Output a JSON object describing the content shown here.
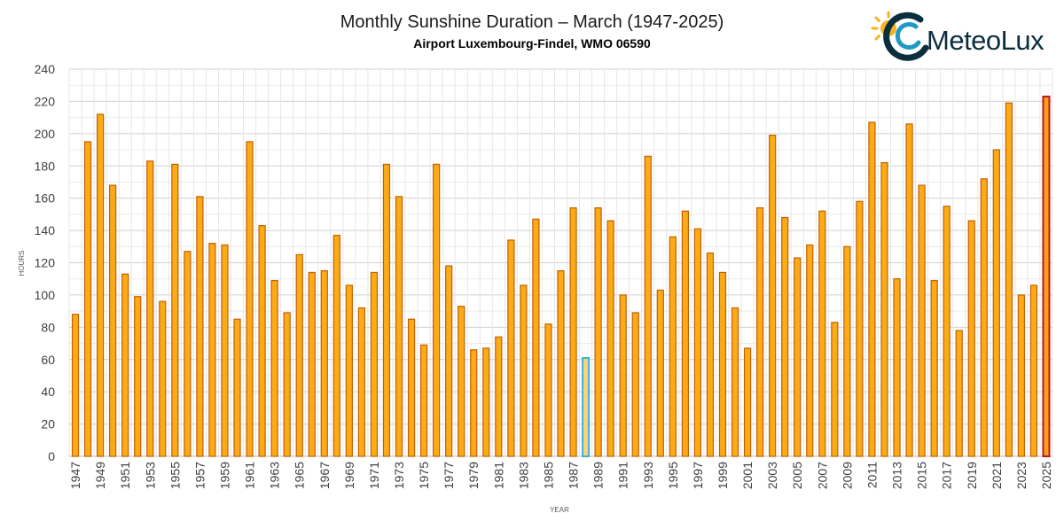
{
  "logo": {
    "text": "MeteoLux",
    "icon": "sun-swirl-logo-icon"
  },
  "chart_data": {
    "type": "bar",
    "title": "Monthly Sunshine Duration – March (1947-2025)",
    "subtitle": "Airport Luxembourg-Findel, WMO 06590",
    "xlabel": "YEAR",
    "ylabel": "HOURS",
    "ylim": [
      0,
      240
    ],
    "yticks": [
      0,
      20,
      40,
      60,
      80,
      100,
      120,
      140,
      160,
      180,
      200,
      220,
      240
    ],
    "grid": true,
    "categories": [
      1947,
      1948,
      1949,
      1950,
      1951,
      1952,
      1953,
      1954,
      1955,
      1956,
      1957,
      1958,
      1959,
      1960,
      1961,
      1962,
      1963,
      1964,
      1965,
      1966,
      1967,
      1968,
      1969,
      1970,
      1971,
      1972,
      1973,
      1974,
      1975,
      1976,
      1977,
      1978,
      1979,
      1980,
      1981,
      1982,
      1983,
      1984,
      1985,
      1986,
      1987,
      1988,
      1989,
      1990,
      1991,
      1992,
      1993,
      1994,
      1995,
      1996,
      1997,
      1998,
      1999,
      2000,
      2001,
      2002,
      2003,
      2004,
      2005,
      2006,
      2007,
      2008,
      2009,
      2010,
      2011,
      2012,
      2013,
      2014,
      2015,
      2016,
      2017,
      2018,
      2019,
      2020,
      2021,
      2022,
      2023,
      2024,
      2025
    ],
    "values": [
      88,
      195,
      212,
      168,
      113,
      99,
      183,
      96,
      181,
      127,
      161,
      132,
      131,
      85,
      195,
      143,
      109,
      89,
      125,
      114,
      115,
      137,
      106,
      92,
      114,
      181,
      161,
      85,
      69,
      181,
      118,
      93,
      66,
      67,
      74,
      134,
      106,
      147,
      82,
      115,
      154,
      61,
      154,
      146,
      100,
      89,
      186,
      103,
      136,
      152,
      141,
      126,
      114,
      92,
      67,
      154,
      199,
      148,
      123,
      131,
      152,
      83,
      130,
      158,
      207,
      182,
      110,
      206,
      168,
      109,
      155,
      78,
      146,
      172,
      190,
      219,
      100,
      106,
      223
    ],
    "xtick_labels": [
      "1947",
      "1949",
      "1951",
      "1953",
      "1955",
      "1957",
      "1959",
      "1961",
      "1963",
      "1965",
      "1967",
      "1969",
      "1971",
      "1973",
      "1975",
      "1977",
      "1979",
      "1981",
      "1983",
      "1985",
      "1987",
      "1989",
      "1991",
      "1993",
      "1995",
      "1997",
      "1999",
      "2001",
      "2003",
      "2005",
      "2007",
      "2009",
      "2011",
      "2013",
      "2015",
      "2017",
      "2019",
      "2021",
      "2023",
      "2025"
    ],
    "highlight": {
      "min": {
        "year": 1988,
        "fill": "#ffd27a",
        "stroke": "#3fb0d8"
      },
      "max": {
        "year": 2025,
        "fill": "#f7a21b",
        "stroke": "#c0171c"
      }
    },
    "colors": {
      "bar_fill": "#fbab17",
      "bar_stroke": "#c65f00",
      "grid": "#d9d9d9",
      "text": "#404040"
    }
  }
}
